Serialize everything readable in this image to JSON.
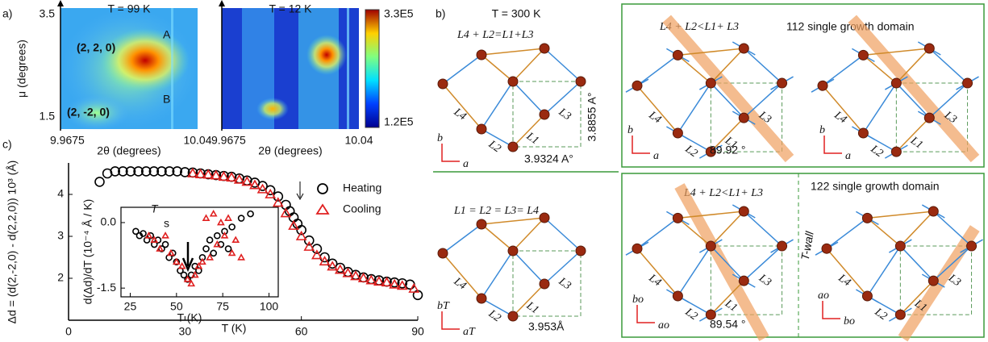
{
  "panel_a": {
    "label": "a)",
    "left": {
      "title": "T = 99 K",
      "yticks": [
        "3.5",
        "1.5"
      ],
      "ylabel": "μ (degrees)",
      "xticks": [
        "9.9675",
        "10.04"
      ],
      "xlabel": "2θ (degrees)",
      "peak_a": "(2, 2, 0)",
      "peak_a_tag": "A",
      "peak_b": "(2, -2, 0)",
      "peak_b_tag": "B"
    },
    "right": {
      "title": "T = 12 K",
      "xticks": [
        "9.9675",
        "10.04"
      ],
      "xlabel": "2θ (degrees)"
    },
    "colorbar": {
      "max": "3.3E5",
      "min": "1.2E5"
    }
  },
  "chart_data": {
    "type": "scatter",
    "label": "c)",
    "ylabel": "Δd = (d(2,-2,0) - d(2,2,0)) 10³ (Å)",
    "xlabel": "T (K)",
    "xlim": [
      0,
      90
    ],
    "ylim": [
      1,
      4.75
    ],
    "xticks": [
      0,
      30,
      60,
      90
    ],
    "yticks": [
      2,
      3,
      4
    ],
    "series": [
      {
        "name": "Heating",
        "color": "#000000",
        "marker": "circle",
        "x": [
          8,
          10,
          12,
          14,
          16,
          18,
          20,
          22,
          24,
          26,
          28,
          30,
          32,
          34,
          36,
          38,
          40,
          42,
          44,
          46,
          48,
          50,
          52,
          54,
          56,
          57,
          58,
          59,
          60,
          62,
          64,
          66,
          68,
          70,
          72,
          74,
          76,
          78,
          80,
          82,
          84,
          86,
          88,
          90
        ],
        "values": [
          4.3,
          4.5,
          4.55,
          4.55,
          4.55,
          4.55,
          4.55,
          4.55,
          4.55,
          4.55,
          4.55,
          4.53,
          4.52,
          4.5,
          4.48,
          4.46,
          4.44,
          4.42,
          4.38,
          4.33,
          4.28,
          4.2,
          4.1,
          3.95,
          3.75,
          3.6,
          3.45,
          3.3,
          3.15,
          2.9,
          2.7,
          2.5,
          2.35,
          2.25,
          2.15,
          2.08,
          2.02,
          1.98,
          1.95,
          1.92,
          1.9,
          1.88,
          1.85,
          1.6
        ]
      },
      {
        "name": "Cooling",
        "color": "#e02020",
        "marker": "triangle",
        "x": [
          32,
          34,
          36,
          38,
          40,
          42,
          44,
          46,
          48,
          50,
          52,
          54,
          56,
          58,
          60,
          62,
          64,
          66,
          68,
          70,
          72,
          74,
          76,
          78,
          80,
          82,
          84,
          86,
          89
        ],
        "values": [
          4.5,
          4.48,
          4.47,
          4.45,
          4.42,
          4.4,
          4.35,
          4.3,
          4.22,
          4.12,
          4.0,
          3.8,
          3.55,
          3.25,
          3.0,
          2.75,
          2.55,
          2.4,
          2.28,
          2.2,
          2.12,
          2.05,
          2.0,
          1.95,
          1.92,
          1.9,
          1.85,
          1.82,
          1.75
        ]
      }
    ],
    "inset": {
      "annotation": "T",
      "annotation_sub": "s",
      "ylabel": "d(Δd)/dT (10⁻⁴ Å / K)",
      "xlabel": "T (K)",
      "xlim": [
        20,
        105
      ],
      "ylim": [
        -1.7,
        0.35
      ],
      "xticks": [
        25,
        50,
        75,
        100
      ],
      "yticks": [
        {
          "value": 0,
          "label": "0.0"
        },
        -1.5
      ],
      "series": [
        {
          "name": "Heating",
          "color": "#000000",
          "marker": "circle",
          "x": [
            28,
            30,
            32,
            34,
            36,
            38,
            40,
            42,
            44,
            46,
            48,
            50,
            52,
            54,
            56,
            58,
            60,
            62,
            64,
            66,
            68,
            70,
            72,
            74,
            76,
            78,
            80,
            85,
            90
          ],
          "values": [
            -0.2,
            -0.3,
            -0.25,
            -0.4,
            -0.3,
            -0.5,
            -0.4,
            -0.6,
            -0.5,
            -0.8,
            -0.7,
            -0.9,
            -1.1,
            -1.2,
            -1.3,
            -1.2,
            -1.0,
            -1.1,
            -0.8,
            -0.6,
            -0.4,
            -0.7,
            -0.3,
            -0.5,
            -0.2,
            -0.6,
            -0.1,
            0.1,
            0.2
          ]
        },
        {
          "name": "Cooling",
          "color": "#e02020",
          "marker": "triangle",
          "x": [
            35,
            38,
            41,
            44,
            47,
            50,
            53,
            56,
            58,
            60,
            62,
            64,
            66,
            68,
            70,
            72,
            74,
            76,
            78,
            80,
            82,
            85
          ],
          "values": [
            -0.3,
            -0.4,
            -0.6,
            -0.3,
            -0.7,
            -0.9,
            -1.0,
            -1.3,
            -1.4,
            -1.2,
            -1.0,
            -0.9,
            0.1,
            -0.8,
            0.2,
            -0.5,
            0.0,
            -0.3,
            0.1,
            -0.7,
            -0.4,
            -0.8
          ]
        }
      ]
    }
  },
  "panel_b": {
    "label": "b)",
    "temperature": "T = 300 K",
    "bond_labels": [
      "L4",
      "L2",
      "L1",
      "L3"
    ],
    "top": {
      "relation": "L4 + L2=L1+L3",
      "axis_b": "b",
      "axis_a": "a",
      "height": "3.8855 A°",
      "width": "3.9324 A°"
    },
    "bottom": {
      "relation": "L1 = L2 = L3= L4",
      "axis_b": "bT",
      "axis_a": "aT",
      "width": "3.953Å"
    }
  },
  "panel_d": {
    "top": {
      "relation": "L4 + L2<L1+ L3",
      "title": "112 single growth domain",
      "angle": "89.92 °",
      "axis_b": "b",
      "axis_a": "a"
    },
    "bottom": {
      "relation": "L4 + L2<L1+ L3",
      "title": "122 single growth domain",
      "wall": "T-wall",
      "angle": "89.54 °",
      "axis_b": "bo",
      "axis_a": "ao"
    }
  }
}
